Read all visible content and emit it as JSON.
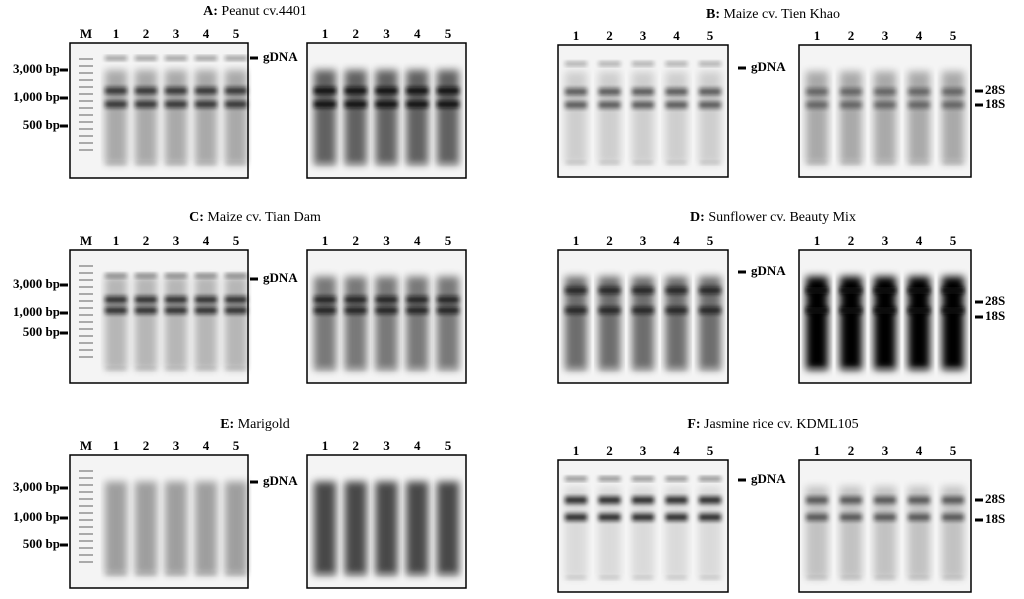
{
  "panels": [
    {
      "letter": "A:",
      "name": "Peanut cv.4401",
      "left_lanes": [
        "M",
        "1",
        "2",
        "3",
        "4",
        "5"
      ],
      "right_lanes": [
        "1",
        "2",
        "3",
        "4",
        "5"
      ],
      "markers": [
        "3,000 bp",
        "1,000 bp",
        "500 bp"
      ],
      "gdna": "gDNA",
      "rrna": []
    },
    {
      "letter": "B:",
      "name": "Maize cv. Tien Khao",
      "left_lanes": [
        "1",
        "2",
        "3",
        "4",
        "5"
      ],
      "right_lanes": [
        "1",
        "2",
        "3",
        "4",
        "5"
      ],
      "markers": [],
      "gdna": "gDNA",
      "rrna": [
        "28S",
        "18S"
      ]
    },
    {
      "letter": "C:",
      "name": "Maize cv. Tian Dam",
      "left_lanes": [
        "M",
        "1",
        "2",
        "3",
        "4",
        "5"
      ],
      "right_lanes": [
        "1",
        "2",
        "3",
        "4",
        "5"
      ],
      "markers": [
        "3,000 bp",
        "1,000 bp",
        "500 bp"
      ],
      "gdna": "gDNA",
      "rrna": []
    },
    {
      "letter": "D:",
      "name": "Sunflower cv. Beauty Mix",
      "left_lanes": [
        "1",
        "2",
        "3",
        "4",
        "5"
      ],
      "right_lanes": [
        "1",
        "2",
        "3",
        "4",
        "5"
      ],
      "markers": [],
      "gdna": "gDNA",
      "rrna": [
        "28S",
        "18S"
      ]
    },
    {
      "letter": "E:",
      "name": "Marigold",
      "left_lanes": [
        "M",
        "1",
        "2",
        "3",
        "4",
        "5"
      ],
      "right_lanes": [
        "1",
        "2",
        "3",
        "4",
        "5"
      ],
      "markers": [
        "3,000 bp",
        "1,000 bp",
        "500 bp"
      ],
      "gdna": "gDNA",
      "rrna": []
    },
    {
      "letter": "F:",
      "name": "Jasmine rice cv. KDML105",
      "left_lanes": [
        "1",
        "2",
        "3",
        "4",
        "5"
      ],
      "right_lanes": [
        "1",
        "2",
        "3",
        "4",
        "5"
      ],
      "markers": [],
      "gdna": "gDNA",
      "rrna": [
        "28S",
        "18S"
      ]
    }
  ]
}
